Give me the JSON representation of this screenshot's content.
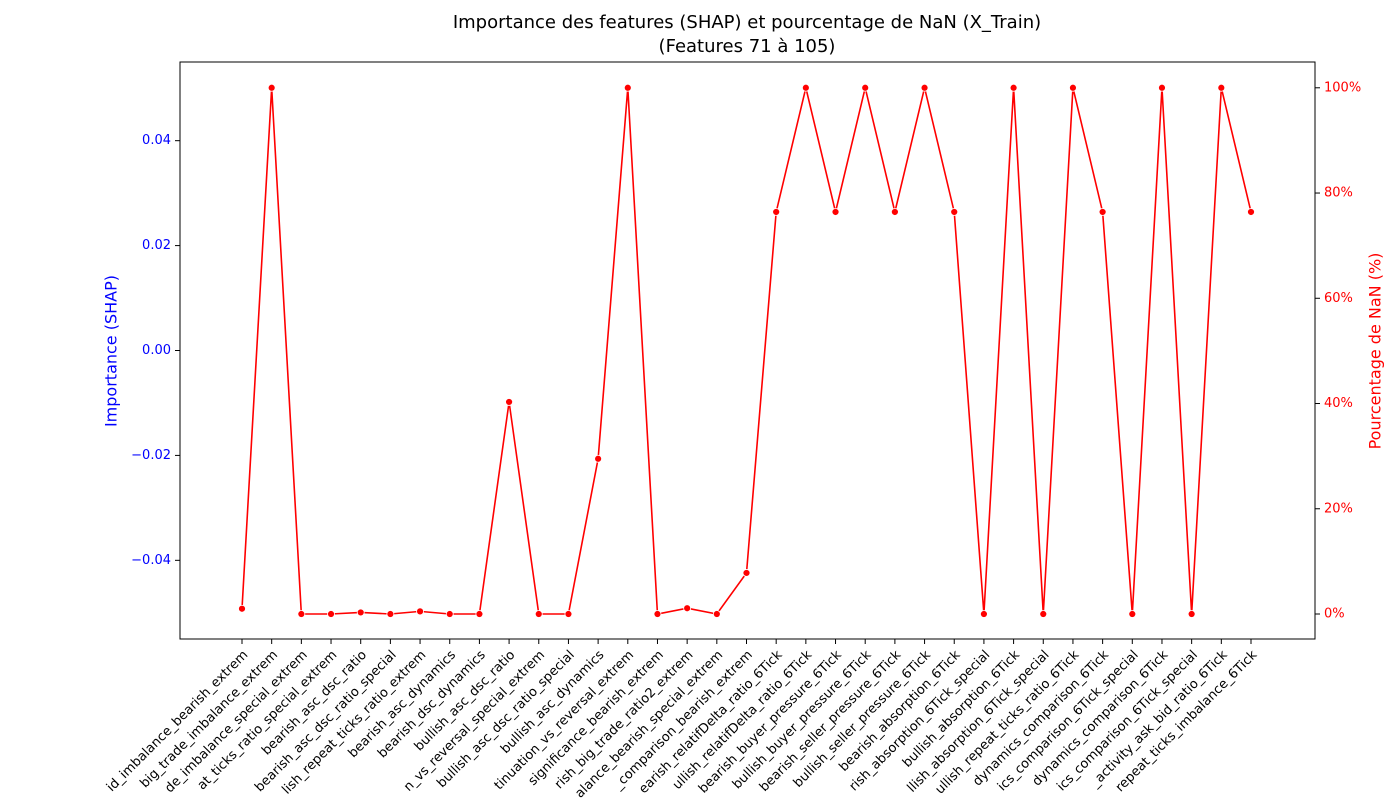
{
  "chart_data": {
    "type": "line",
    "title": "Importance des features (SHAP) et pourcentage de NaN (X_Train)",
    "subtitle": "(Features 71 à 105)",
    "ylabel": "Importance (SHAP)",
    "ylabel_color": "#0000ff",
    "y2label": "Pourcentage de NaN (%)",
    "y2label_color": "#ff0000",
    "ylim": [
      -0.055,
      0.055
    ],
    "yticks": [
      {
        "value": -0.04,
        "label": "−0.04"
      },
      {
        "value": -0.02,
        "label": "−0.02"
      },
      {
        "value": 0,
        "label": "0.00"
      },
      0.02,
      0.04
    ],
    "y2lim": [
      -4.75,
      104.9
    ],
    "y2ticks": [
      {
        "value": 0,
        "label": "0%"
      },
      {
        "value": 20,
        "label": "20%"
      },
      {
        "value": 40,
        "label": "40%"
      },
      {
        "value": 60,
        "label": "60%"
      },
      {
        "value": 80,
        "label": "80%"
      },
      {
        "value": 100,
        "label": "100%"
      }
    ],
    "categories": [
      "id_imbalance_bearish_extrem",
      "big_trade_imbalance_extrem",
      "de_imbalance_special_extrem",
      "at_ticks_ratio_special_extrem",
      "bearish_asc_dsc_ratio",
      "bearish_asc_dsc_ratio_special",
      "lish_repeat_ticks_ratio_extrem",
      "bearish_asc_dynamics",
      "bearish_dsc_dynamics",
      "bullish_asc_dsc_ratio",
      "n_vs_reversal_special_extrem",
      "bullish_asc_dsc_ratio_special",
      "bullish_asc_dynamics",
      "tinuation_vs_reversal_extrem",
      "significance_bearish_extrem",
      "rish_big_trade_ratio2_extrem",
      "alance_bearish_special_extrem",
      "_comparison_bearish_extrem",
      "earish_relatifDelta_ratio_6Tick",
      "ullish_relatifDelta_ratio_6Tick",
      "bearish_buyer_pressure_6Tick",
      "bullish_buyer_pressure_6Tick",
      "bearish_seller_pressure_6Tick",
      "bullish_seller_pressure_6Tick",
      "bearish_absorption_6Tick",
      "rish_absorption_6Tick_special",
      "bullish_absorption_6Tick",
      "llish_absorption_6Tick_special",
      "ullish_repeat_ticks_ratio_6Tick",
      "dynamics_comparison_6Tick",
      "ics_comparison_6Tick_special",
      "dynamics_comparison_6Tick",
      "ics_comparison_6Tick_special",
      "_activity_ask_bid_ratio_6Tick",
      "repeat_ticks_imbalance_6Tick"
    ],
    "series": [
      {
        "name": "NaN (%)",
        "color": "#ff0000",
        "axis": "y2",
        "values": [
          1,
          100,
          0,
          0,
          0.3,
          0,
          0.5,
          0,
          0,
          40.3,
          0,
          0,
          29.5,
          100,
          0,
          1.1,
          0,
          7.8,
          76.4,
          100,
          76.4,
          100,
          76.4,
          100,
          76.4,
          0,
          100,
          0,
          100,
          76.4,
          0,
          100,
          0,
          100,
          76.4
        ]
      }
    ]
  }
}
